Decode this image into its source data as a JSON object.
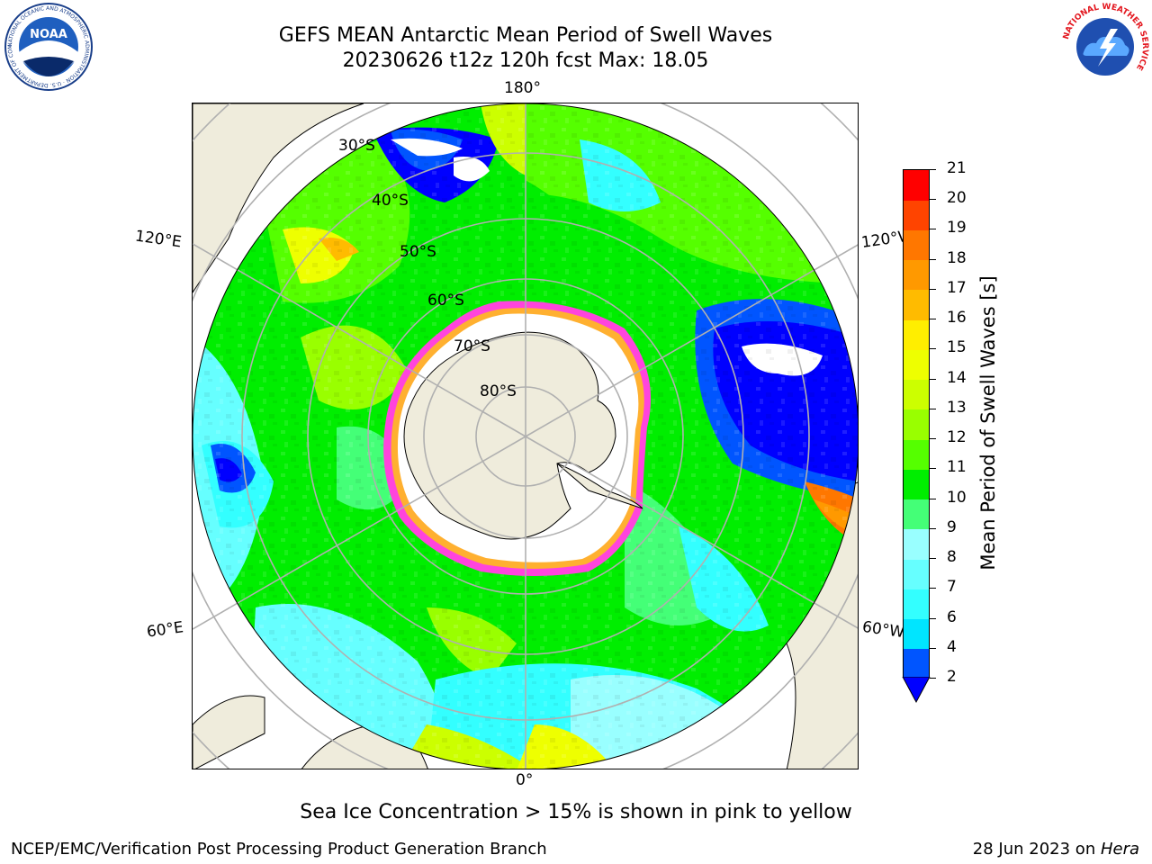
{
  "header": {
    "title_line1": "GEFS MEAN Antarctic Mean Period of Swell Waves",
    "title_line2": "20230626 t12z 120h fcst   Max: 18.05"
  },
  "map": {
    "projection": "south-polar-stereographic",
    "longitude_labels": {
      "top": "180°",
      "bottom": "0°",
      "upper_left": "120°E",
      "upper_right": "120°W",
      "lower_left": "60°E",
      "lower_right": "60°W"
    },
    "latitude_labels": [
      "30°S",
      "40°S",
      "50°S",
      "60°S",
      "70°S",
      "80°S"
    ],
    "colors": {
      "land": "#efecdc",
      "ice_free_cap": "#ffffff",
      "ice_edge_pink": "#ff44dd",
      "ice_edge_yellow": "#ffb030",
      "graticule": "#b0b0b0"
    }
  },
  "colorbar": {
    "title": "Mean Period of Swell Waves [s]",
    "levels": [
      "2",
      "4",
      "6",
      "7",
      "8",
      "9",
      "10",
      "11",
      "12",
      "13",
      "14",
      "15",
      "16",
      "17",
      "18",
      "19",
      "20",
      "21"
    ],
    "colors": [
      "#0055ff",
      "#00e5ff",
      "#33ffff",
      "#66ffff",
      "#99ffff",
      "#44ff77",
      "#00ee00",
      "#55ff00",
      "#99ff00",
      "#ccff00",
      "#eeff00",
      "#ffee00",
      "#ffbb00",
      "#ff9900",
      "#ff7700",
      "#ff4400",
      "#ff0000"
    ],
    "under_color": "#0000ff"
  },
  "footer": {
    "note": "Sea Ice Concentration > 15% is shown in pink to yellow",
    "credit_left": "NCEP/EMC/Verification Post Processing Product Generation Branch",
    "credit_date": "28 Jun 2023 on ",
    "credit_machine": "Hera"
  },
  "logos": {
    "noaa_text": "NOAA",
    "noaa_ring_text": "NATIONAL OCEANIC AND ATMOSPHERIC ADMINISTRATION · U.S. DEPARTMENT OF COMMERCE",
    "nws_ring_text": "NATIONAL WEATHER SERVICE"
  }
}
